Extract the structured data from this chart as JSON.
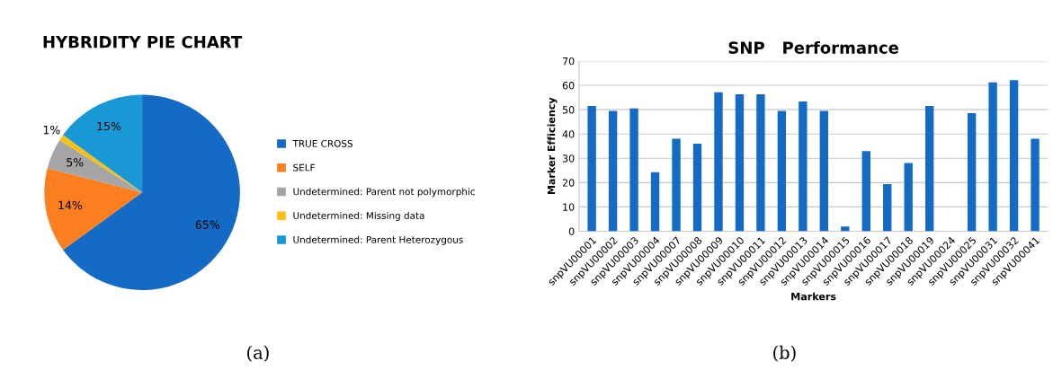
{
  "chart_data": [
    {
      "type": "pie",
      "title": "HYBRIDITY PIE CHART",
      "categories": [
        "TRUE CROSS",
        "SELF",
        "Undetermined: Parent not polymorphic",
        "Undetermined: Missing data",
        "Undetermined: Parent Heterozygous"
      ],
      "values": [
        65,
        14,
        5,
        1,
        15
      ],
      "colors": [
        "#136bc6",
        "#fb7e1f",
        "#a5a5a5",
        "#fdc010",
        "#1899d5"
      ],
      "value_labels": [
        "65%",
        "14%",
        "5%",
        "1%",
        "15%"
      ],
      "legend": "right",
      "annotations": [
        "(a)"
      ]
    },
    {
      "type": "bar",
      "title": "SNP   Performance",
      "xlabel": "Markers",
      "ylabel": "Marker Efficiency",
      "categories": [
        "snpVU00001",
        "snpVU00002",
        "snpVU00003",
        "snpVU00004",
        "snpVU00007",
        "snpVU00008",
        "snpVU00009",
        "snpVU00010",
        "snpVU00011",
        "snpVU00012",
        "snpVU00013",
        "snpVU00014",
        "snpVU00015",
        "snpVU00016",
        "snpVU00017",
        "snpVU00018",
        "snpVU00019",
        "snpVU00024",
        "snpVU00025",
        "snpVU00031",
        "snpVU00032",
        "snpVU00041"
      ],
      "values": [
        51.5,
        49.5,
        50.5,
        24.3,
        38,
        36,
        57.2,
        56.3,
        56.3,
        49.5,
        53.4,
        49.5,
        1.9,
        33,
        19.4,
        28.1,
        51.5,
        0,
        48.6,
        61.2,
        62.1,
        38
      ],
      "color": "#136bc6",
      "ylim": [
        0,
        70
      ],
      "yticks": [
        0,
        10,
        20,
        30,
        40,
        50,
        60,
        70
      ],
      "grid": "y",
      "annotations": [
        "(b)"
      ]
    }
  ]
}
